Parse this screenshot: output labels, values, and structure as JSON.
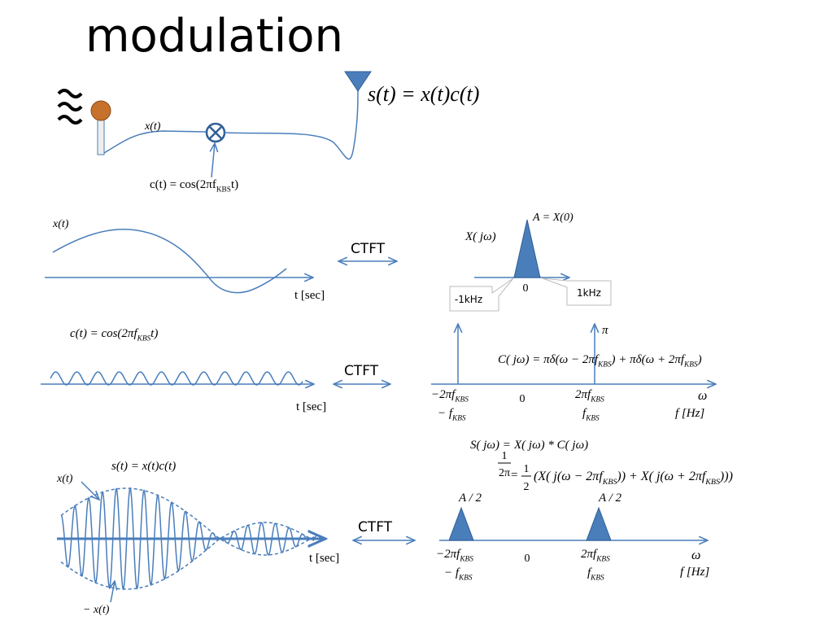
{
  "title": "modulation",
  "top": {
    "equation": [
      "s(t) = x(t)c(t)"
    ],
    "input": [
      "x(t)"
    ],
    "carrier": [
      "c(t) = cos(2πf",
      "KBS",
      "t)"
    ]
  },
  "row1": {
    "signal_label": [
      "x(t)"
    ],
    "time_axis": [
      "t [sec]"
    ],
    "transform": "CTFT",
    "peak": [
      "A = X(0)"
    ],
    "spectrum_label": [
      "X( jω)"
    ],
    "origin": [
      "0"
    ],
    "callout_left": "-1kHz",
    "callout_right": "1kHz"
  },
  "row2": {
    "signal_label": [
      "c(t) = cos(2πf",
      "KBS",
      "t)"
    ],
    "time_axis": [
      "t [sec]"
    ],
    "transform": "CTFT",
    "impulse_height": [
      "π"
    ],
    "spectrum": [
      "C( jω) = πδ(ω − 2πf",
      "KBS",
      ") + πδ(ω + 2πf",
      "KBS",
      ")"
    ],
    "neg_omega": [
      "−2πf",
      "KBS"
    ],
    "neg_freq": [
      "− f",
      "KBS"
    ],
    "origin": [
      "0"
    ],
    "pos_omega": [
      "2πf",
      "KBS"
    ],
    "pos_freq": [
      "f",
      "KBS"
    ],
    "omega_axis": [
      "ω"
    ],
    "freq_axis": [
      "f [Hz]"
    ]
  },
  "row3": {
    "formula_lhs": [
      "S( jω) ="
    ],
    "formula_num": [
      "1"
    ],
    "formula_den": [
      "2π"
    ],
    "formula_rhs": [
      "X( jω) * C( jω)"
    ],
    "formula2_eq": [
      "="
    ],
    "formula2_num": [
      "1"
    ],
    "formula2_den": [
      "2"
    ],
    "formula2_rhs": [
      "(X( j(ω − 2πf",
      "KBS",
      ")) + X( j(ω + 2πf",
      "KBS",
      ")))"
    ],
    "signal_label": [
      "s(t) = x(t)c(t)"
    ],
    "upper_envelope": [
      "x(t)"
    ],
    "lower_envelope": [
      "− x(t)"
    ],
    "time_axis": [
      "t [sec]"
    ],
    "transform": "CTFT",
    "left_peak": [
      "A / 2"
    ],
    "right_peak": [
      "A / 2"
    ],
    "neg_omega": [
      "−2πf",
      "KBS"
    ],
    "neg_freq": [
      "− f",
      "KBS"
    ],
    "origin": [
      "0"
    ],
    "pos_omega": [
      "2πf",
      "KBS"
    ],
    "pos_freq": [
      "f",
      "KBS"
    ],
    "omega_axis": [
      "ω"
    ],
    "freq_axis": [
      "f [Hz]"
    ]
  }
}
